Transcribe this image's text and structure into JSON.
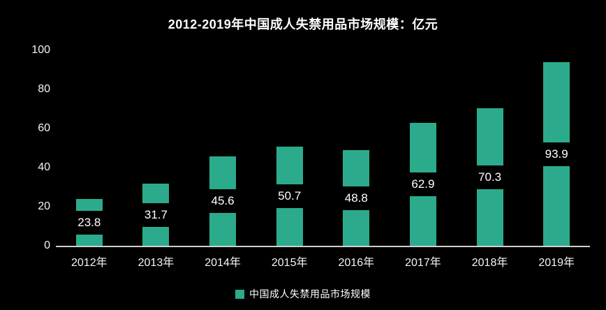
{
  "chart_data": {
    "type": "bar",
    "title": "2012-2019年中国成人失禁用品市场规模：亿元",
    "categories": [
      "2012年",
      "2013年",
      "2014年",
      "2015年",
      "2016年",
      "2017年",
      "2018年",
      "2019年"
    ],
    "values": [
      23.8,
      31.7,
      45.6,
      50.7,
      48.8,
      62.9,
      70.3,
      93.9
    ],
    "series_name": "中国成人失禁用品市场规模",
    "xlabel": "",
    "ylabel": "",
    "ylim": [
      0,
      100
    ],
    "yticks": [
      0,
      20,
      40,
      60,
      80,
      100
    ],
    "grid": false,
    "legend_position": "bottom",
    "value_labels": "inside-center-on-black-band",
    "colors": {
      "background": "#000000",
      "bar": "#2bab8c",
      "text": "#ffffff",
      "axis_line": "#cfcfcf",
      "value_label_background": "#000000"
    }
  }
}
